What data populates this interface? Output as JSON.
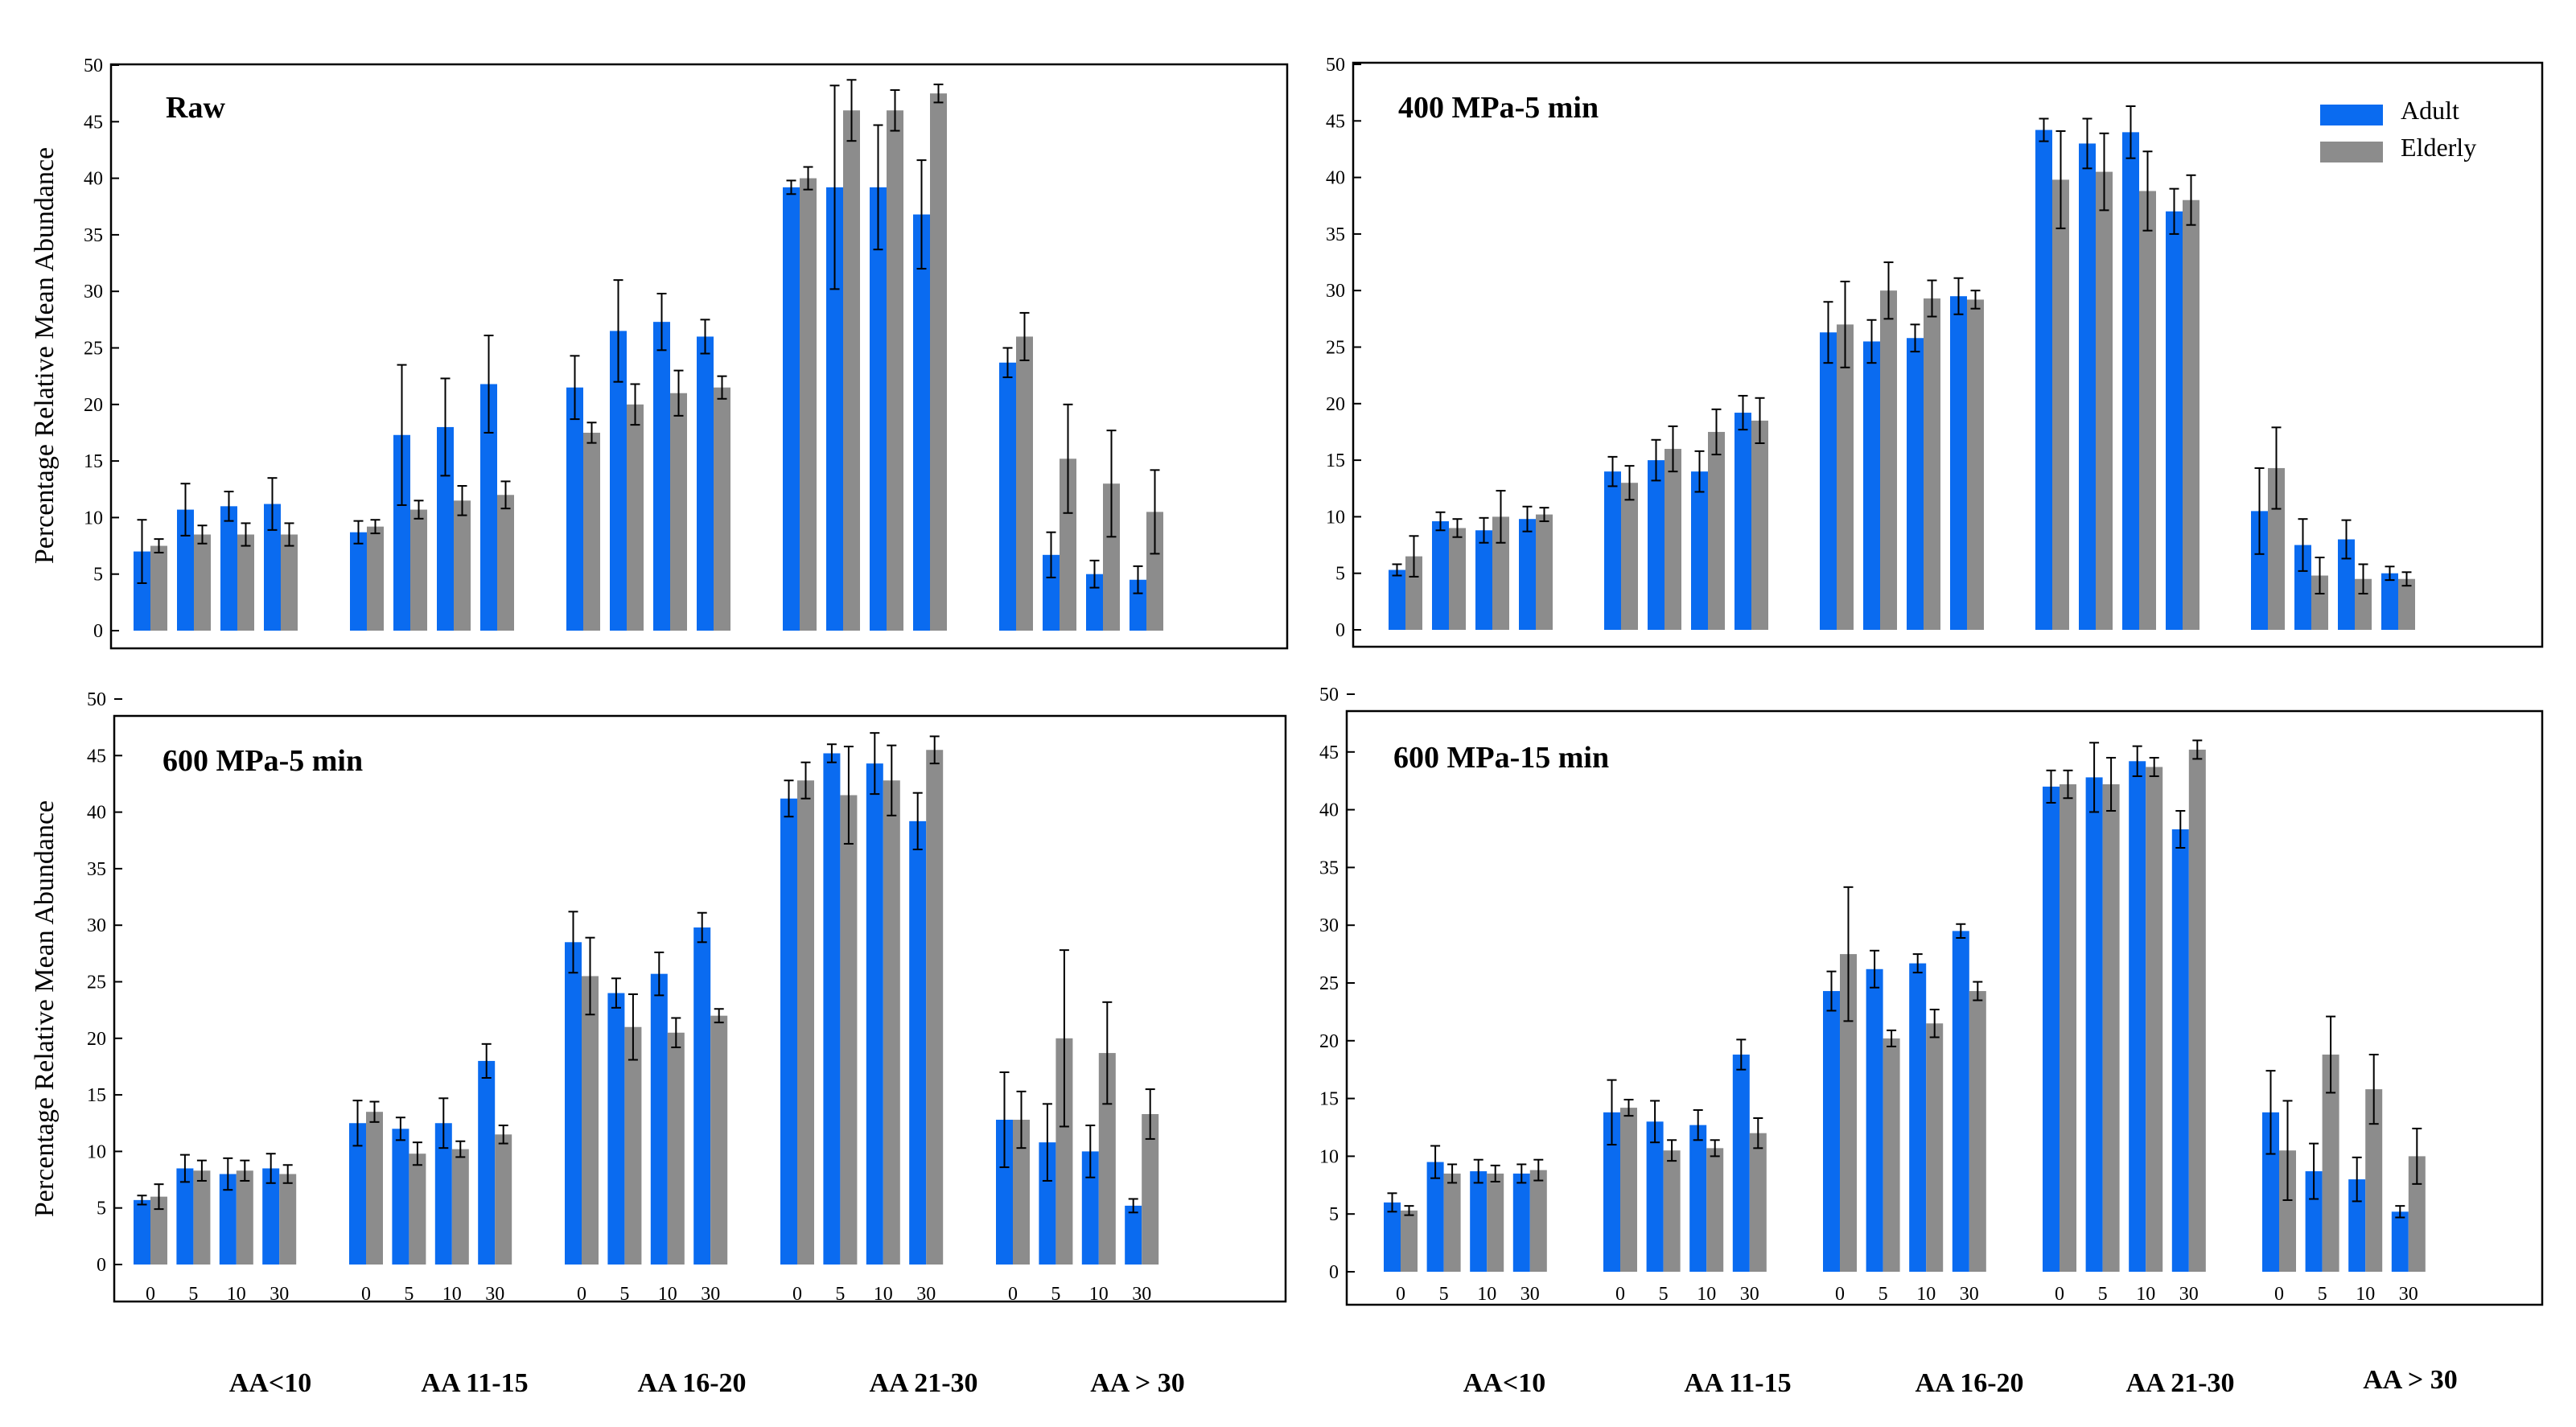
{
  "figure": {
    "y_label": "Percentage  Relative  Mean Abundance",
    "group_labels": [
      "AA<10",
      "AA 11-15",
      "AA 16-20",
      "AA 21-30",
      "AA > 30"
    ],
    "legend": {
      "series": [
        "Adult",
        "Elderly"
      ],
      "colors": [
        "#0a6bf0",
        "#8c8c8c"
      ]
    }
  },
  "chart_data": [
    {
      "type": "bar",
      "title": "Raw",
      "categories": [
        "0",
        "5",
        "10",
        "30"
      ],
      "groups": [
        "AA<10",
        "AA 11-15",
        "AA 16-20",
        "AA 21-30",
        "AA > 30"
      ],
      "ylim": [
        0,
        50
      ],
      "yticks": [
        0,
        5,
        10,
        15,
        20,
        25,
        30,
        35,
        40,
        45,
        50
      ],
      "series": [
        {
          "name": "Adult",
          "color": "#0a6bf0",
          "values": [
            [
              7.0,
              10.7,
              11.0,
              11.2
            ],
            [
              8.7,
              17.3,
              18.0,
              21.8
            ],
            [
              21.5,
              26.5,
              27.3,
              26.0
            ],
            [
              39.2,
              39.2,
              39.2,
              36.8
            ],
            [
              23.7,
              6.7,
              5.0,
              4.5
            ]
          ],
          "errors": [
            [
              2.8,
              2.3,
              1.3,
              2.3
            ],
            [
              1.0,
              6.2,
              4.3,
              4.3
            ],
            [
              2.8,
              4.5,
              2.5,
              1.5
            ],
            [
              0.6,
              9.0,
              5.5,
              4.8
            ],
            [
              1.3,
              2.0,
              1.2,
              1.2
            ]
          ]
        },
        {
          "name": "Elderly",
          "color": "#8c8c8c",
          "values": [
            [
              7.5,
              8.5,
              8.5,
              8.5
            ],
            [
              9.2,
              10.7,
              11.5,
              12.0
            ],
            [
              17.5,
              20.0,
              21.0,
              21.5
            ],
            [
              40.0,
              46.0,
              46.0,
              47.5
            ],
            [
              26.0,
              15.2,
              13.0,
              10.5
            ]
          ],
          "errors": [
            [
              0.6,
              0.8,
              1.0,
              1.0
            ],
            [
              0.6,
              0.8,
              1.3,
              1.2
            ],
            [
              0.9,
              1.8,
              2.0,
              1.0
            ],
            [
              1.0,
              2.7,
              1.8,
              0.8
            ],
            [
              2.1,
              4.8,
              4.7,
              3.7
            ]
          ]
        }
      ]
    },
    {
      "type": "bar",
      "title": "400 MPa-5 min",
      "categories": [
        "0",
        "5",
        "10",
        "30"
      ],
      "groups": [
        "AA<10",
        "AA 11-15",
        "AA 16-20",
        "AA 21-30",
        "AA > 30"
      ],
      "ylim": [
        0,
        50
      ],
      "yticks": [
        0,
        5,
        10,
        15,
        20,
        25,
        30,
        35,
        40,
        45,
        50
      ],
      "legend_position": "top-right",
      "series": [
        {
          "name": "Adult",
          "color": "#0a6bf0",
          "values": [
            [
              5.3,
              9.6,
              8.8,
              9.8
            ],
            [
              14.0,
              15.0,
              14.0,
              19.2
            ],
            [
              26.3,
              25.5,
              25.8,
              29.5
            ],
            [
              44.2,
              43.0,
              44.0,
              37.0
            ],
            [
              10.5,
              7.5,
              8.0,
              5.0
            ]
          ],
          "errors": [
            [
              0.5,
              0.8,
              1.1,
              1.1
            ],
            [
              1.3,
              1.8,
              1.8,
              1.5
            ],
            [
              2.7,
              1.9,
              1.2,
              1.6
            ],
            [
              1.0,
              2.2,
              2.3,
              2.0
            ],
            [
              3.8,
              2.3,
              1.7,
              0.6
            ]
          ]
        },
        {
          "name": "Elderly",
          "color": "#8c8c8c",
          "values": [
            [
              6.5,
              9.0,
              10.0,
              10.2
            ],
            [
              13.0,
              16.0,
              17.5,
              18.5
            ],
            [
              27.0,
              30.0,
              29.3,
              29.2
            ],
            [
              39.8,
              40.5,
              38.8,
              38.0
            ],
            [
              14.3,
              4.8,
              4.5,
              4.5
            ]
          ],
          "errors": [
            [
              1.8,
              0.8,
              2.3,
              0.6
            ],
            [
              1.5,
              2.0,
              2.0,
              2.0
            ],
            [
              3.8,
              2.5,
              1.6,
              0.8
            ],
            [
              4.3,
              3.4,
              3.5,
              2.2
            ],
            [
              3.6,
              1.6,
              1.3,
              0.6
            ]
          ]
        }
      ]
    },
    {
      "type": "bar",
      "title": "600 MPa-5 min",
      "categories": [
        "0",
        "5",
        "10",
        "30"
      ],
      "groups": [
        "AA<10",
        "AA 11-15",
        "AA 16-20",
        "AA 21-30",
        "AA > 30"
      ],
      "ylim": [
        0,
        50
      ],
      "yticks": [
        0,
        5,
        10,
        15,
        20,
        25,
        30,
        35,
        40,
        45,
        50
      ],
      "series": [
        {
          "name": "Adult",
          "color": "#0a6bf0",
          "values": [
            [
              5.7,
              8.5,
              8.0,
              8.5
            ],
            [
              12.5,
              12.0,
              12.5,
              18.0
            ],
            [
              28.5,
              24.0,
              25.7,
              29.8
            ],
            [
              41.2,
              45.2,
              44.3,
              39.2
            ],
            [
              12.8,
              10.8,
              10.0,
              5.2
            ]
          ],
          "errors": [
            [
              0.4,
              1.2,
              1.4,
              1.3
            ],
            [
              2.0,
              1.0,
              2.2,
              1.5
            ],
            [
              2.7,
              1.3,
              1.9,
              1.3
            ],
            [
              1.6,
              0.8,
              2.7,
              2.5
            ],
            [
              4.2,
              3.4,
              2.3,
              0.6
            ]
          ]
        },
        {
          "name": "Elderly",
          "color": "#8c8c8c",
          "values": [
            [
              6.0,
              8.3,
              8.3,
              8.0
            ],
            [
              13.5,
              9.8,
              10.2,
              11.5
            ],
            [
              25.5,
              21.0,
              20.5,
              22.0
            ],
            [
              42.8,
              41.5,
              42.8,
              45.5
            ],
            [
              12.8,
              20.0,
              18.7,
              13.3
            ]
          ],
          "errors": [
            [
              1.1,
              0.9,
              0.9,
              0.8
            ],
            [
              0.9,
              1.0,
              0.7,
              0.8
            ],
            [
              3.4,
              2.9,
              1.3,
              0.6
            ],
            [
              1.6,
              4.3,
              3.1,
              1.2
            ],
            [
              2.5,
              7.8,
              4.5,
              2.2
            ]
          ]
        }
      ]
    },
    {
      "type": "bar",
      "title": "600 MPa-15 min",
      "categories": [
        "0",
        "5",
        "10",
        "30"
      ],
      "groups": [
        "AA<10",
        "AA 11-15",
        "AA 16-20",
        "AA 21-30",
        "AA > 30"
      ],
      "ylim": [
        0,
        50
      ],
      "yticks": [
        0,
        5,
        10,
        15,
        20,
        25,
        30,
        35,
        40,
        45,
        50
      ],
      "series": [
        {
          "name": "Adult",
          "color": "#0a6bf0",
          "values": [
            [
              6.0,
              9.5,
              8.7,
              8.5
            ],
            [
              13.8,
              13.0,
              12.7,
              18.8
            ],
            [
              24.3,
              26.2,
              26.7,
              29.5
            ],
            [
              42.0,
              42.8,
              44.2,
              38.3
            ],
            [
              13.8,
              8.7,
              8.0,
              5.2
            ]
          ],
          "errors": [
            [
              0.8,
              1.4,
              1.0,
              0.8
            ],
            [
              2.8,
              1.8,
              1.3,
              1.3
            ],
            [
              1.7,
              1.6,
              0.8,
              0.6
            ],
            [
              1.4,
              3.0,
              1.3,
              1.6
            ],
            [
              3.6,
              2.4,
              1.9,
              0.5
            ]
          ]
        },
        {
          "name": "Elderly",
          "color": "#8c8c8c",
          "values": [
            [
              5.3,
              8.5,
              8.5,
              8.8
            ],
            [
              14.2,
              10.5,
              10.7,
              12.0
            ],
            [
              27.5,
              20.2,
              21.5,
              24.3
            ],
            [
              42.2,
              42.2,
              43.7,
              45.2
            ],
            [
              10.5,
              18.8,
              15.8,
              10.0
            ]
          ],
          "errors": [
            [
              0.4,
              0.8,
              0.7,
              0.9
            ],
            [
              0.7,
              0.9,
              0.7,
              1.3
            ],
            [
              5.8,
              0.7,
              1.2,
              0.8
            ],
            [
              1.2,
              2.3,
              0.8,
              0.8
            ],
            [
              4.3,
              3.3,
              3.0,
              2.4
            ]
          ]
        }
      ]
    }
  ]
}
